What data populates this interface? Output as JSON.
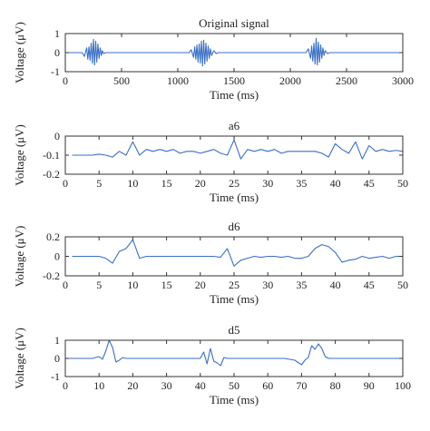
{
  "chart_data": [
    {
      "type": "line",
      "title": "Original signal",
      "xlabel": "Time (ms)",
      "ylabel": "Voltage (μV)",
      "xlim": [
        0,
        3000
      ],
      "ylim": [
        -1,
        1
      ],
      "xticks": [
        "0",
        "500",
        "1000",
        "1500",
        "2000",
        "2500",
        "3000"
      ],
      "yticks": [
        "-1",
        "0",
        "1"
      ],
      "grid": false,
      "color": "#3a6fc4",
      "series": [
        {
          "x": [
            0,
            150,
            170,
            190,
            200,
            210,
            220,
            230,
            240,
            250,
            260,
            270,
            280,
            290,
            300,
            310,
            320,
            330,
            340,
            360,
            1000,
            1100,
            1120,
            1140,
            1150,
            1160,
            1170,
            1180,
            1190,
            1200,
            1210,
            1220,
            1230,
            1240,
            1250,
            1260,
            1270,
            1280,
            1290,
            1300,
            1320,
            1340,
            1360,
            2000,
            2140,
            2160,
            2180,
            2190,
            2200,
            2210,
            2220,
            2230,
            2240,
            2250,
            2260,
            2270,
            2280,
            2290,
            2300,
            2310,
            2330,
            2350,
            3000
          ],
          "y": [
            0,
            0,
            -0.2,
            0.25,
            -0.35,
            0.3,
            -0.4,
            0.5,
            -0.55,
            0.7,
            -0.65,
            0.6,
            -0.5,
            0.45,
            -0.3,
            0.25,
            -0.15,
            0.1,
            -0.05,
            0,
            0,
            0,
            0.15,
            -0.25,
            0.3,
            -0.35,
            0.4,
            -0.5,
            0.45,
            -0.55,
            0.6,
            -0.7,
            0.65,
            -0.6,
            0.5,
            -0.45,
            0.35,
            -0.3,
            0.2,
            -0.15,
            0.1,
            -0.05,
            0,
            0,
            0,
            0.2,
            -0.3,
            0.35,
            -0.45,
            0.5,
            -0.6,
            0.75,
            -0.65,
            0.55,
            -0.5,
            0.4,
            -0.3,
            0.25,
            -0.15,
            0.1,
            -0.05,
            0,
            0
          ]
        }
      ]
    },
    {
      "type": "line",
      "title": "a6",
      "xlabel": "Time (ms)",
      "ylabel": "Voltage (μV)",
      "xlim": [
        0,
        50
      ],
      "ylim": [
        -0.2,
        0
      ],
      "xticks": [
        "0",
        "5",
        "10",
        "15",
        "20",
        "25",
        "30",
        "35",
        "40",
        "45",
        "50"
      ],
      "yticks": [
        "-0.2",
        "-0.1",
        "0"
      ],
      "grid": false,
      "color": "#3a6fc4",
      "series": [
        {
          "x": [
            1,
            2,
            3,
            4,
            5,
            6,
            7,
            8,
            9,
            10,
            11,
            12,
            13,
            14,
            15,
            16,
            17,
            18,
            19,
            20,
            21,
            22,
            23,
            24,
            25,
            26,
            27,
            28,
            29,
            30,
            31,
            32,
            33,
            34,
            35,
            36,
            37,
            38,
            39,
            40,
            41,
            42,
            43,
            44,
            45,
            46,
            47,
            48,
            49,
            50
          ],
          "y": [
            -0.1,
            -0.1,
            -0.1,
            -0.1,
            -0.095,
            -0.1,
            -0.11,
            -0.08,
            -0.1,
            -0.03,
            -0.1,
            -0.07,
            -0.08,
            -0.07,
            -0.08,
            -0.07,
            -0.09,
            -0.08,
            -0.08,
            -0.09,
            -0.08,
            -0.07,
            -0.09,
            -0.1,
            -0.02,
            -0.12,
            -0.07,
            -0.08,
            -0.07,
            -0.08,
            -0.07,
            -0.09,
            -0.08,
            -0.08,
            -0.08,
            -0.08,
            -0.08,
            -0.09,
            -0.11,
            -0.04,
            -0.07,
            -0.09,
            -0.03,
            -0.12,
            -0.05,
            -0.08,
            -0.07,
            -0.08,
            -0.075,
            -0.08
          ]
        }
      ]
    },
    {
      "type": "line",
      "title": "d6",
      "xlabel": "Time (ms)",
      "ylabel": "Voltage (μV)",
      "xlim": [
        0,
        50
      ],
      "ylim": [
        -0.2,
        0.2
      ],
      "xticks": [
        "0",
        "5",
        "10",
        "15",
        "20",
        "25",
        "30",
        "35",
        "40",
        "45",
        "50"
      ],
      "yticks": [
        "-0.2",
        "0",
        "0.2"
      ],
      "grid": false,
      "color": "#3a6fc4",
      "series": [
        {
          "x": [
            1,
            2,
            3,
            4,
            5,
            6,
            7,
            8,
            9,
            10,
            11,
            12,
            13,
            14,
            15,
            16,
            17,
            18,
            19,
            20,
            21,
            22,
            23,
            24,
            25,
            26,
            27,
            28,
            29,
            30,
            31,
            32,
            33,
            34,
            35,
            36,
            37,
            38,
            39,
            40,
            41,
            42,
            43,
            44,
            45,
            46,
            47,
            48,
            49,
            50
          ],
          "y": [
            0,
            0,
            0,
            0,
            0,
            -0.02,
            -0.07,
            0.05,
            0.08,
            0.17,
            -0.02,
            0,
            0,
            0,
            0,
            0,
            0,
            0,
            0,
            0,
            0,
            0,
            -0.01,
            0.08,
            -0.1,
            -0.04,
            -0.02,
            0,
            -0.01,
            0,
            0,
            -0.01,
            0,
            -0.02,
            -0.02,
            0,
            0.08,
            0.12,
            0.1,
            0.04,
            -0.06,
            -0.04,
            -0.03,
            0,
            -0.02,
            -0.01,
            0,
            -0.02,
            0,
            0
          ]
        }
      ]
    },
    {
      "type": "line",
      "title": "d5",
      "xlabel": "Time (ms)",
      "ylabel": "Voltage (μV)",
      "xlim": [
        0,
        100
      ],
      "ylim": [
        -1,
        1
      ],
      "xticks": [
        "0",
        "10",
        "20",
        "30",
        "40",
        "50",
        "60",
        "70",
        "80",
        "90",
        "100"
      ],
      "yticks": [
        "-1",
        "0",
        "1"
      ],
      "grid": false,
      "color": "#3a6fc4",
      "series": [
        {
          "x": [
            1,
            5,
            8,
            10,
            11,
            12,
            13,
            14,
            15,
            16,
            17,
            18,
            20,
            25,
            30,
            35,
            38,
            40,
            41,
            42,
            43,
            44,
            45,
            46,
            47,
            48,
            50,
            55,
            60,
            65,
            68,
            70,
            71,
            72,
            73,
            74,
            75,
            76,
            77,
            78,
            80,
            85,
            90,
            95,
            100
          ],
          "y": [
            0,
            0,
            0,
            0.1,
            -0.05,
            0.4,
            1.0,
            0.6,
            -0.2,
            -0.1,
            0.05,
            0,
            0,
            0,
            0,
            0,
            0,
            0,
            0.35,
            -0.3,
            0.55,
            -0.15,
            -0.25,
            -0.4,
            0.05,
            0,
            0,
            0,
            0,
            0,
            -0.1,
            -0.35,
            -0.1,
            0.05,
            0.7,
            0.5,
            0.8,
            0.55,
            0.1,
            0,
            0,
            0,
            0,
            0,
            0
          ]
        }
      ]
    }
  ]
}
